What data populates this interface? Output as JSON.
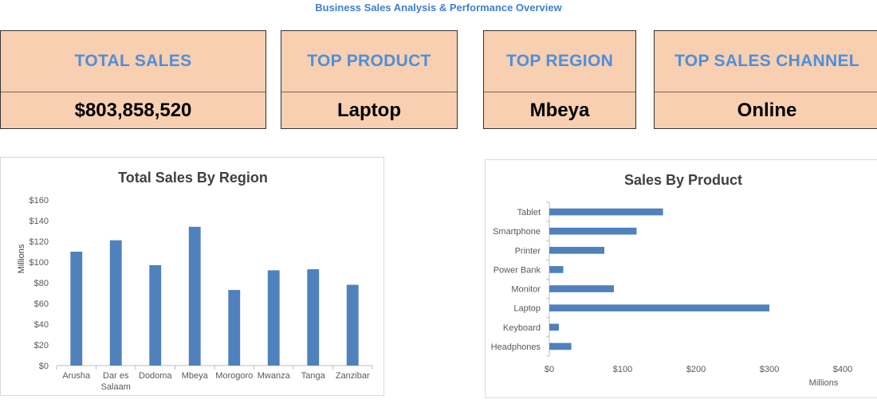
{
  "header": {
    "title": "Business Sales Analysis & Performance Overview"
  },
  "kpis": [
    {
      "label": "TOTAL SALES",
      "value": "$803,858,520"
    },
    {
      "label": "TOP PRODUCT",
      "value": "Laptop"
    },
    {
      "label": "TOP REGION",
      "value": "Mbeya"
    },
    {
      "label": "TOP SALES CHANNEL",
      "value": "Online"
    }
  ],
  "colors": {
    "bar": "#4f81bd",
    "kpi_bg": "#f8cfb0",
    "kpi_label": "#4f8fd9",
    "title": "#3f7fce"
  },
  "chart_data": [
    {
      "type": "bar",
      "title": "Total Sales By Region",
      "ylabel": "Millions",
      "categories": [
        "Arusha",
        "Dar es Salaam",
        "Dodoma",
        "Mbeya",
        "Morogoro",
        "Mwanza",
        "Tanga",
        "Zanzibar"
      ],
      "values": [
        110,
        121,
        97,
        134,
        73,
        92,
        93,
        78
      ],
      "ylim": [
        0,
        160
      ],
      "yticks": [
        "$0",
        "$20",
        "$40",
        "$60",
        "$80",
        "$100",
        "$120",
        "$140",
        "$160"
      ]
    },
    {
      "type": "bar",
      "orientation": "horizontal",
      "title": "Sales By Product",
      "xlabel": "Millions",
      "categories": [
        "Tablet",
        "Smartphone",
        "Printer",
        "Power Bank",
        "Monitor",
        "Laptop",
        "Keyboard",
        "Headphones"
      ],
      "values": [
        155,
        119,
        75,
        19,
        88,
        300,
        13,
        30
      ],
      "xlim": [
        0,
        400
      ],
      "xticks": [
        "$0",
        "$100",
        "$200",
        "$300",
        "$400"
      ]
    }
  ]
}
